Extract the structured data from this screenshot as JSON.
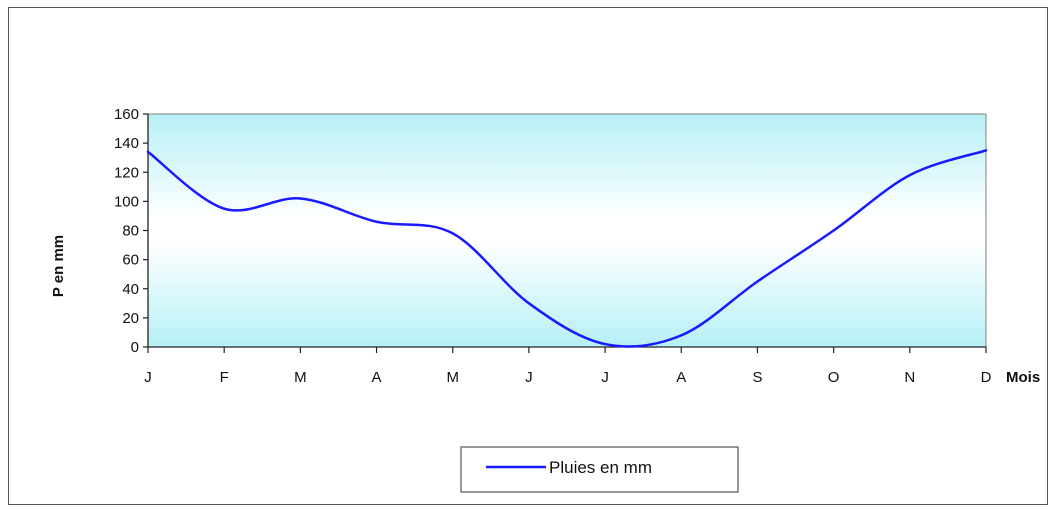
{
  "chart_data": {
    "type": "line",
    "categories": [
      "J",
      "F",
      "M",
      "A",
      "M",
      "J",
      "J",
      "A",
      "S",
      "O",
      "N",
      "D"
    ],
    "series": [
      {
        "name": "Pluies en mm",
        "values": [
          134,
          95,
          102,
          86,
          78,
          30,
          2,
          8,
          45,
          80,
          118,
          135
        ]
      }
    ],
    "xlabel": "Mois",
    "ylabel": "P en mm",
    "ylim": [
      0,
      160
    ],
    "yticks": [
      0,
      20,
      40,
      60,
      80,
      100,
      120,
      140,
      160
    ],
    "grid": false,
    "legend_position": "bottom",
    "colors": {
      "line": "#1a1aff",
      "plot_background_edge": "#b6f0f6",
      "plot_background_center": "#ffffff",
      "axis": "#222222"
    }
  }
}
